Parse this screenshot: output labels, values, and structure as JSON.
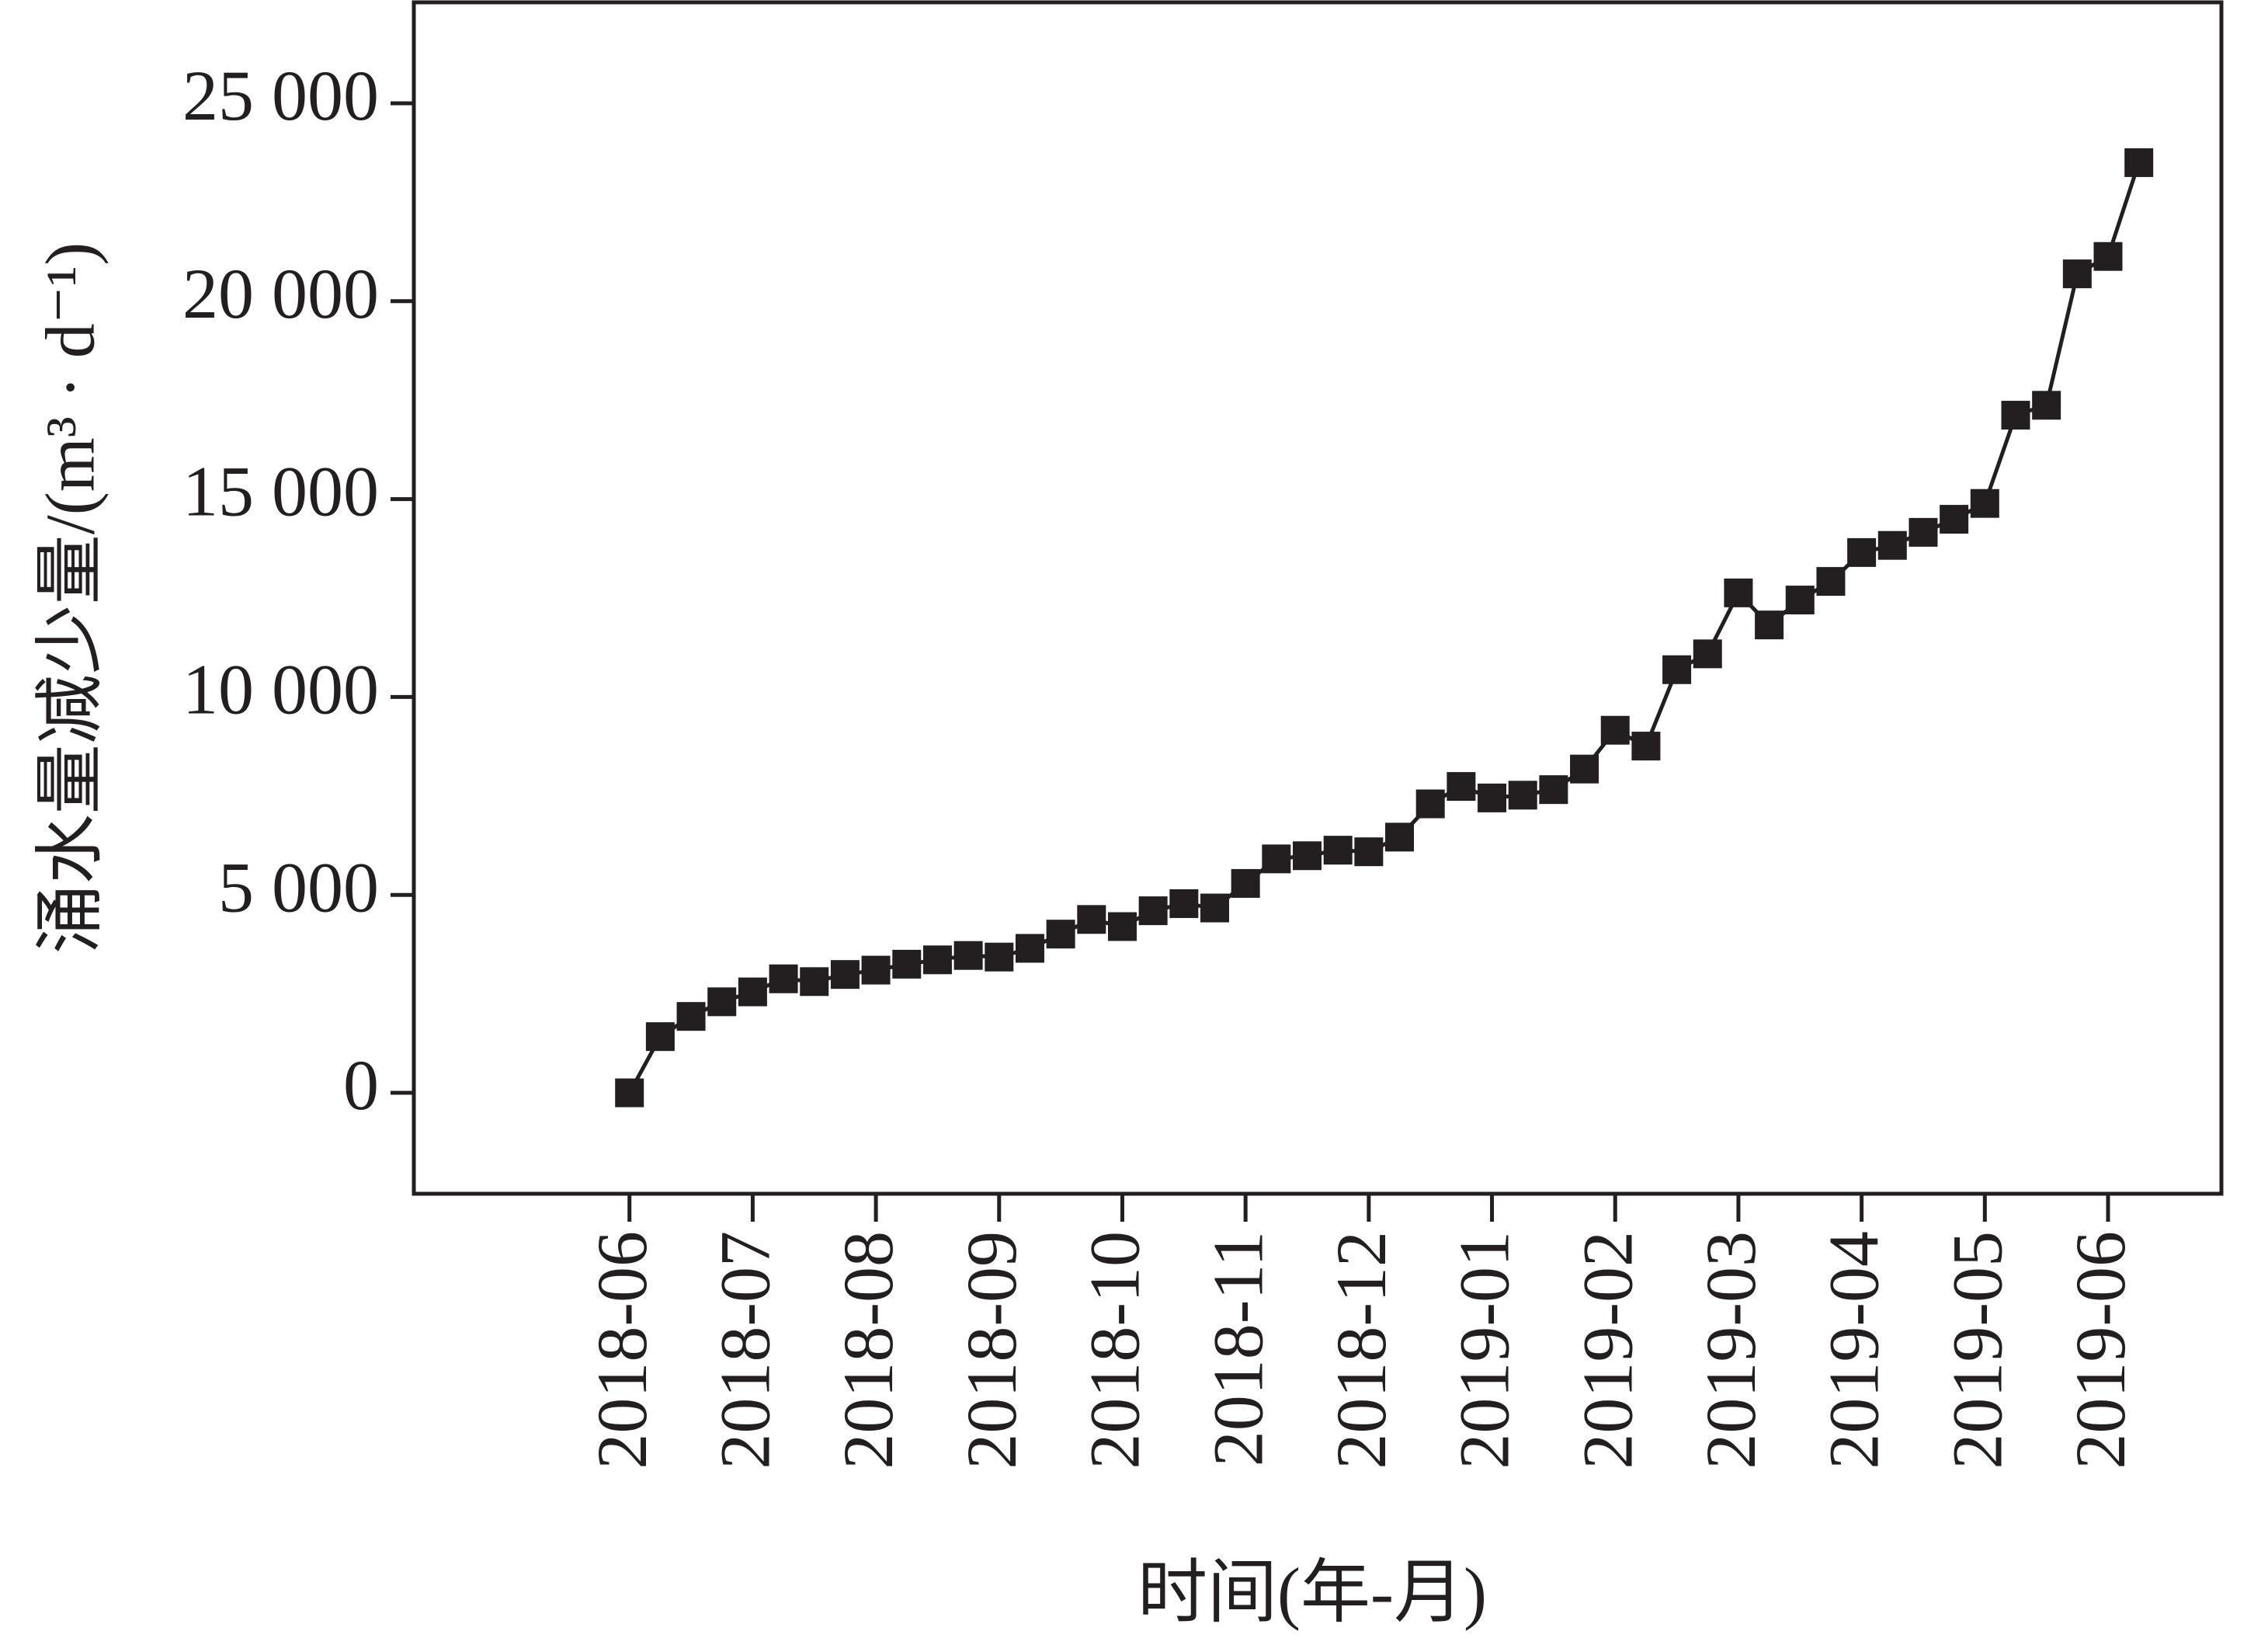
{
  "chart_data": {
    "type": "line",
    "x_label": "时间(年-月)",
    "y_label": "涌水量减少量/(m³ · d⁻¹)",
    "color": "#231f20",
    "marker": "square",
    "x": [
      0,
      0.25,
      0.5,
      0.75,
      1,
      1.25,
      1.5,
      1.75,
      2,
      2.25,
      2.5,
      2.75,
      3,
      3.25,
      3.5,
      3.75,
      4,
      4.25,
      4.5,
      4.75,
      5,
      5.25,
      5.5,
      5.75,
      6,
      6.25,
      6.5,
      6.75,
      7,
      7.25,
      7.5,
      7.75,
      8,
      8.25,
      8.5,
      8.75,
      9,
      9.25,
      9.5,
      9.75,
      10,
      10.25,
      10.5,
      10.75,
      11,
      11.25,
      11.5,
      11.75,
      12,
      12.25
    ],
    "values": [
      0,
      1420,
      1930,
      2300,
      2550,
      2880,
      2810,
      2990,
      3100,
      3250,
      3360,
      3470,
      3430,
      3650,
      4010,
      4380,
      4200,
      4600,
      4780,
      4670,
      5290,
      5910,
      5990,
      6130,
      6090,
      6460,
      7300,
      7740,
      7450,
      7520,
      7660,
      8180,
      9160,
      8760,
      10690,
      11090,
      12630,
      11820,
      12450,
      12920,
      13650,
      13830,
      14160,
      14490,
      14890,
      17120,
      17370,
      20690,
      21130,
      23500
    ],
    "xlim": [
      -1.75,
      12.92
    ],
    "xticks": [
      {
        "value": 0,
        "label": "2018-06"
      },
      {
        "value": 1,
        "label": "2018-07"
      },
      {
        "value": 2,
        "label": "2018-08"
      },
      {
        "value": 3,
        "label": "2018-09"
      },
      {
        "value": 4,
        "label": "2018-10"
      },
      {
        "value": 5,
        "label": "2018-11"
      },
      {
        "value": 6,
        "label": "2018-12"
      },
      {
        "value": 7,
        "label": "2019-01"
      },
      {
        "value": 8,
        "label": "2019-02"
      },
      {
        "value": 9,
        "label": "2019-03"
      },
      {
        "value": 10,
        "label": "2019-04"
      },
      {
        "value": 11,
        "label": "2019-05"
      },
      {
        "value": 12,
        "label": "2019-06"
      }
    ],
    "ylim": [
      -2550,
      27550
    ],
    "yticks": [
      0,
      {
        "value": 5000,
        "label": "5 000"
      },
      {
        "value": 10000,
        "label": "10 000"
      },
      {
        "value": 15000,
        "label": "15 000"
      },
      {
        "value": 20000,
        "label": "20 000"
      },
      {
        "value": 25000,
        "label": "25 000"
      }
    ],
    "grid": false
  }
}
